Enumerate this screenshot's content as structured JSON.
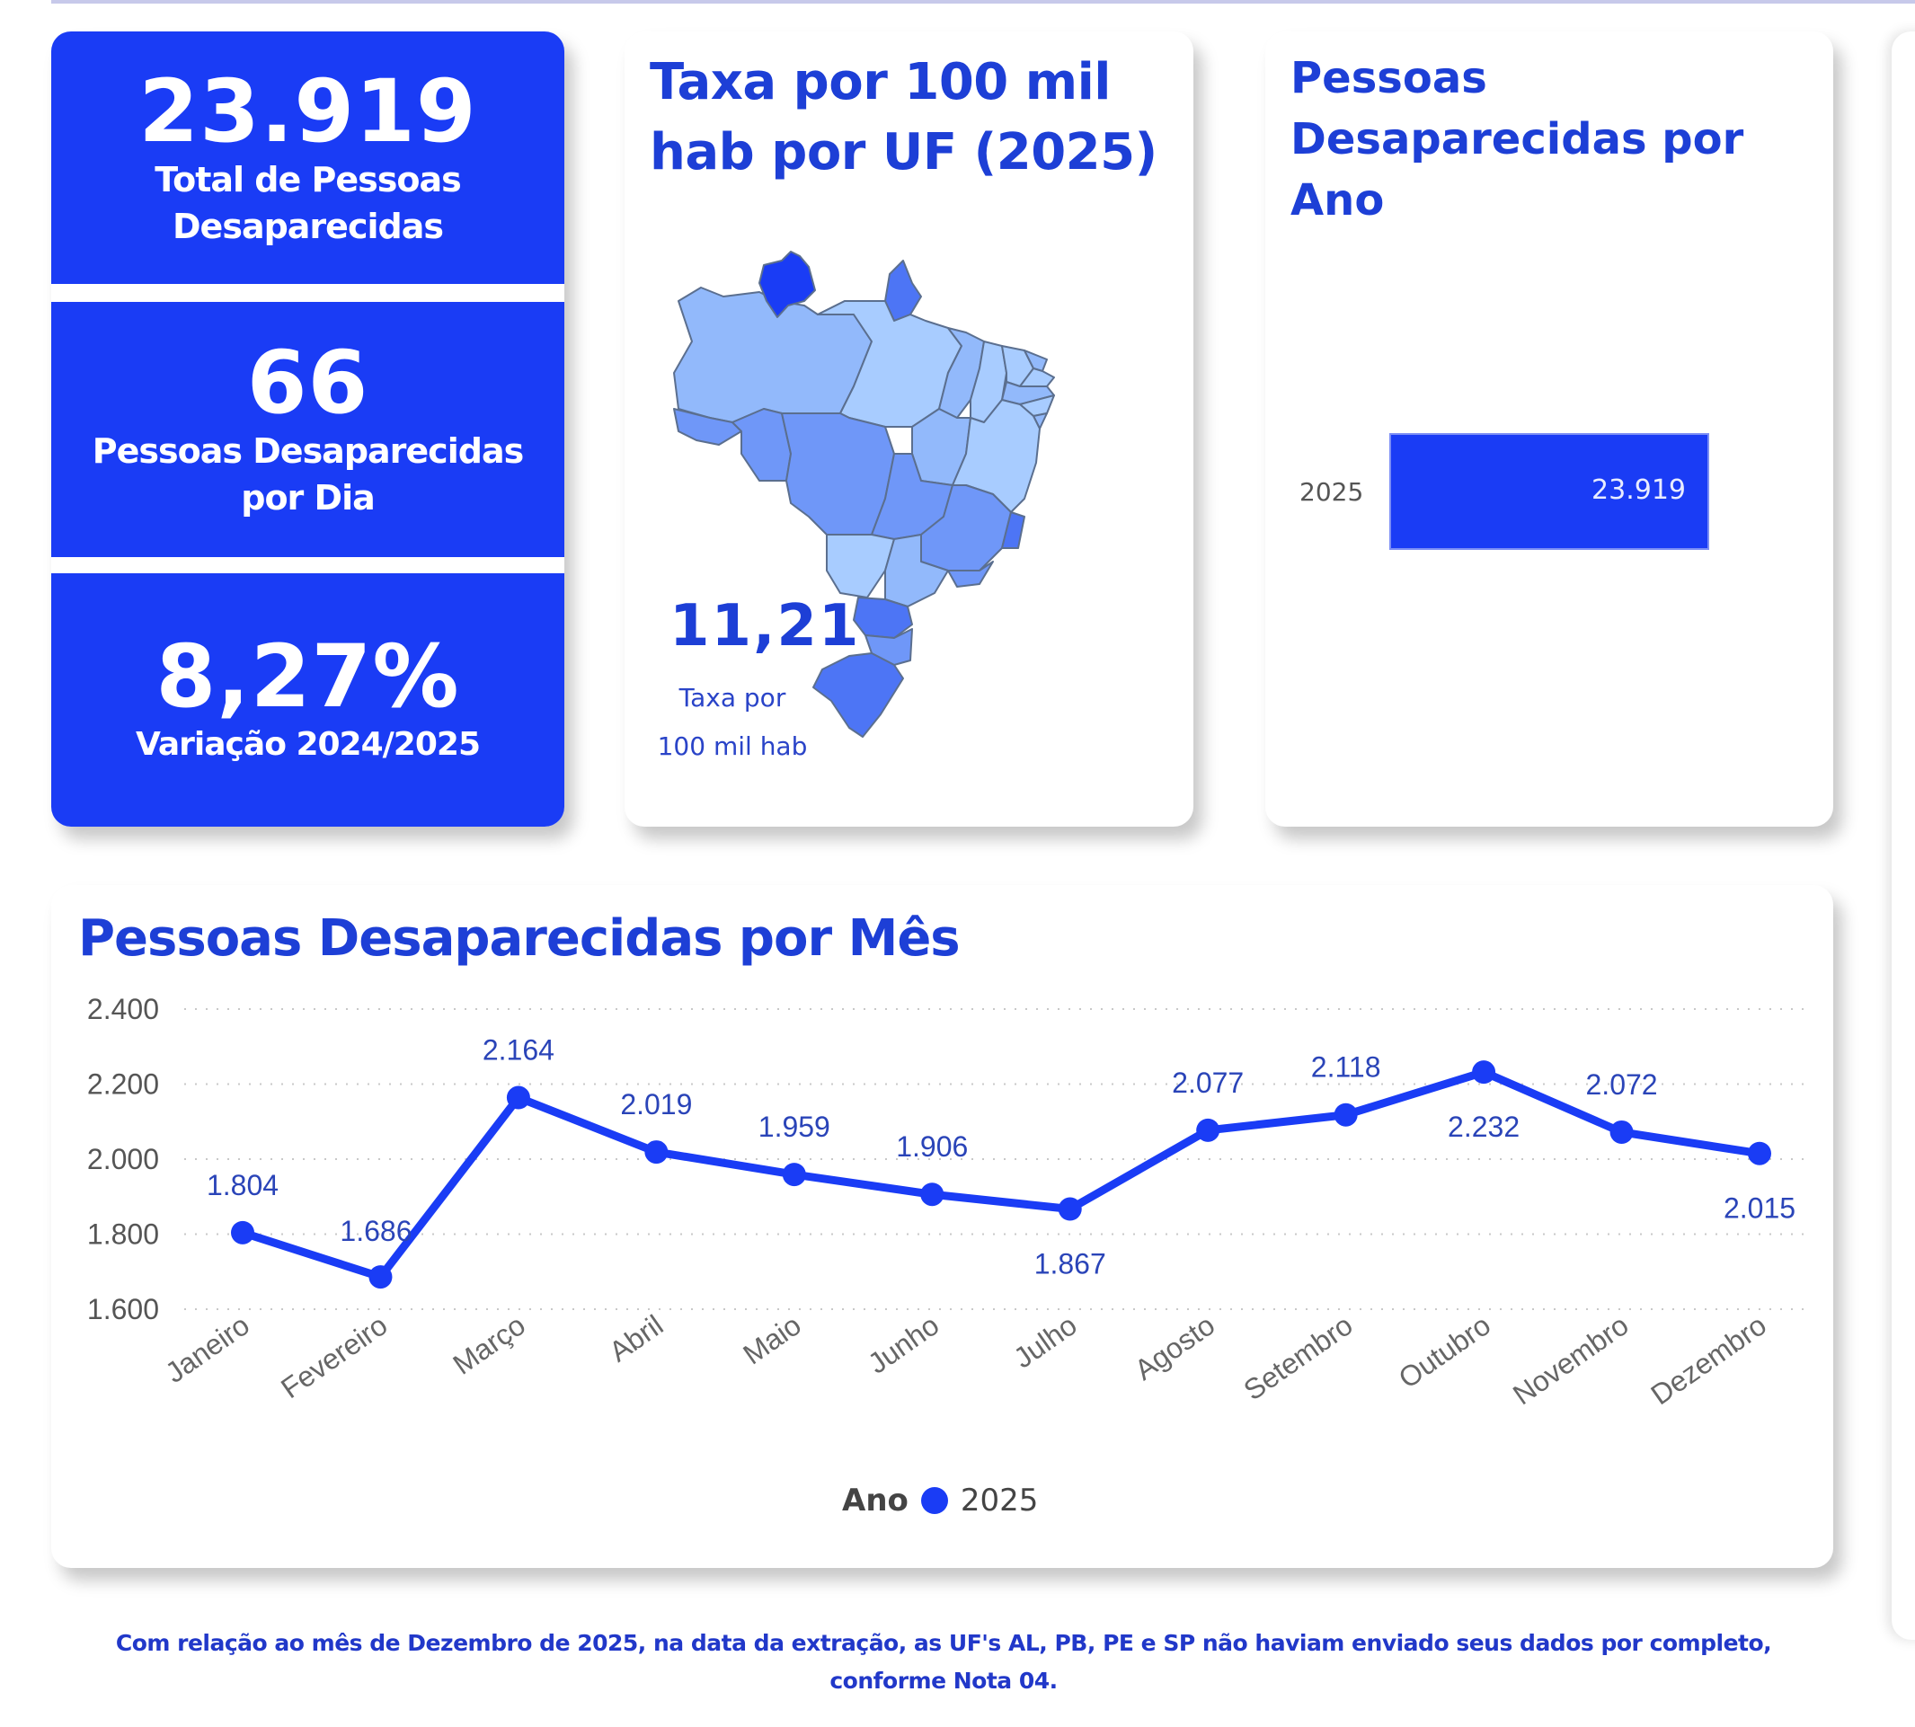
{
  "kpis": {
    "total": {
      "value": "23.919",
      "label": "Total de Pessoas Desaparecidas"
    },
    "per_day": {
      "value": "66",
      "label": "Pessoas Desaparecidas por Dia"
    },
    "variation": {
      "value": "8,27%",
      "label": "Variação 2024/2025"
    }
  },
  "map_card": {
    "title": "Taxa por 100 mil hab por UF (2025)",
    "rate_value": "11,21",
    "rate_label_line1": "Taxa por",
    "rate_label_line2": "100 mil hab",
    "colors": {
      "darkest": "#1a3cf5",
      "dark": "#4d75f5",
      "medium": "#6f97f8",
      "light": "#92b9fb",
      "lightest": "#a8ccff",
      "border": "#5b6f8f"
    }
  },
  "year_card": {
    "title": "Pessoas Desaparecidas por Ano",
    "bar": {
      "category": "2025",
      "value_label": "23.919"
    }
  },
  "line_card": {
    "title": "Pessoas Desaparecidas por Mês",
    "legend": {
      "title": "Ano",
      "series": "2025"
    }
  },
  "footnote": "Com relação ao mês de Dezembro de 2025, na data da extração, as UF's AL, PB, PE e SP não haviam enviado seus dados por completo, conforme Nota 04.",
  "colors": {
    "accent": "#1a3cf5",
    "title": "#1d3fd6",
    "axis_text": "#555555"
  },
  "chart_data": [
    {
      "type": "bar",
      "title": "Pessoas Desaparecidas por Ano",
      "orientation": "horizontal",
      "categories": [
        "2025"
      ],
      "values": [
        23919
      ],
      "value_labels": [
        "23.919"
      ],
      "xlabel": "",
      "ylabel": ""
    },
    {
      "type": "line",
      "title": "Pessoas Desaparecidas por Mês",
      "categories": [
        "Janeiro",
        "Fevereiro",
        "Março",
        "Abril",
        "Maio",
        "Junho",
        "Julho",
        "Agosto",
        "Setembro",
        "Outubro",
        "Novembro",
        "Dezembro"
      ],
      "series": [
        {
          "name": "2025",
          "values": [
            1804,
            1686,
            2164,
            2019,
            1959,
            1906,
            1867,
            2077,
            2118,
            2232,
            2072,
            2015
          ],
          "value_labels": [
            "1.804",
            "1.686",
            "2.164",
            "2.019",
            "1.959",
            "1.906",
            "1.867",
            "2.077",
            "2.118",
            "2.232",
            "2.072",
            "2.015"
          ]
        }
      ],
      "yticks": [
        "2.400",
        "2.200",
        "2.000",
        "1.800",
        "1.600"
      ],
      "ylim": [
        1600,
        2400
      ],
      "grid": true,
      "legend_title": "Ano",
      "legend_position": "bottom",
      "xlabel": "",
      "ylabel": ""
    }
  ]
}
